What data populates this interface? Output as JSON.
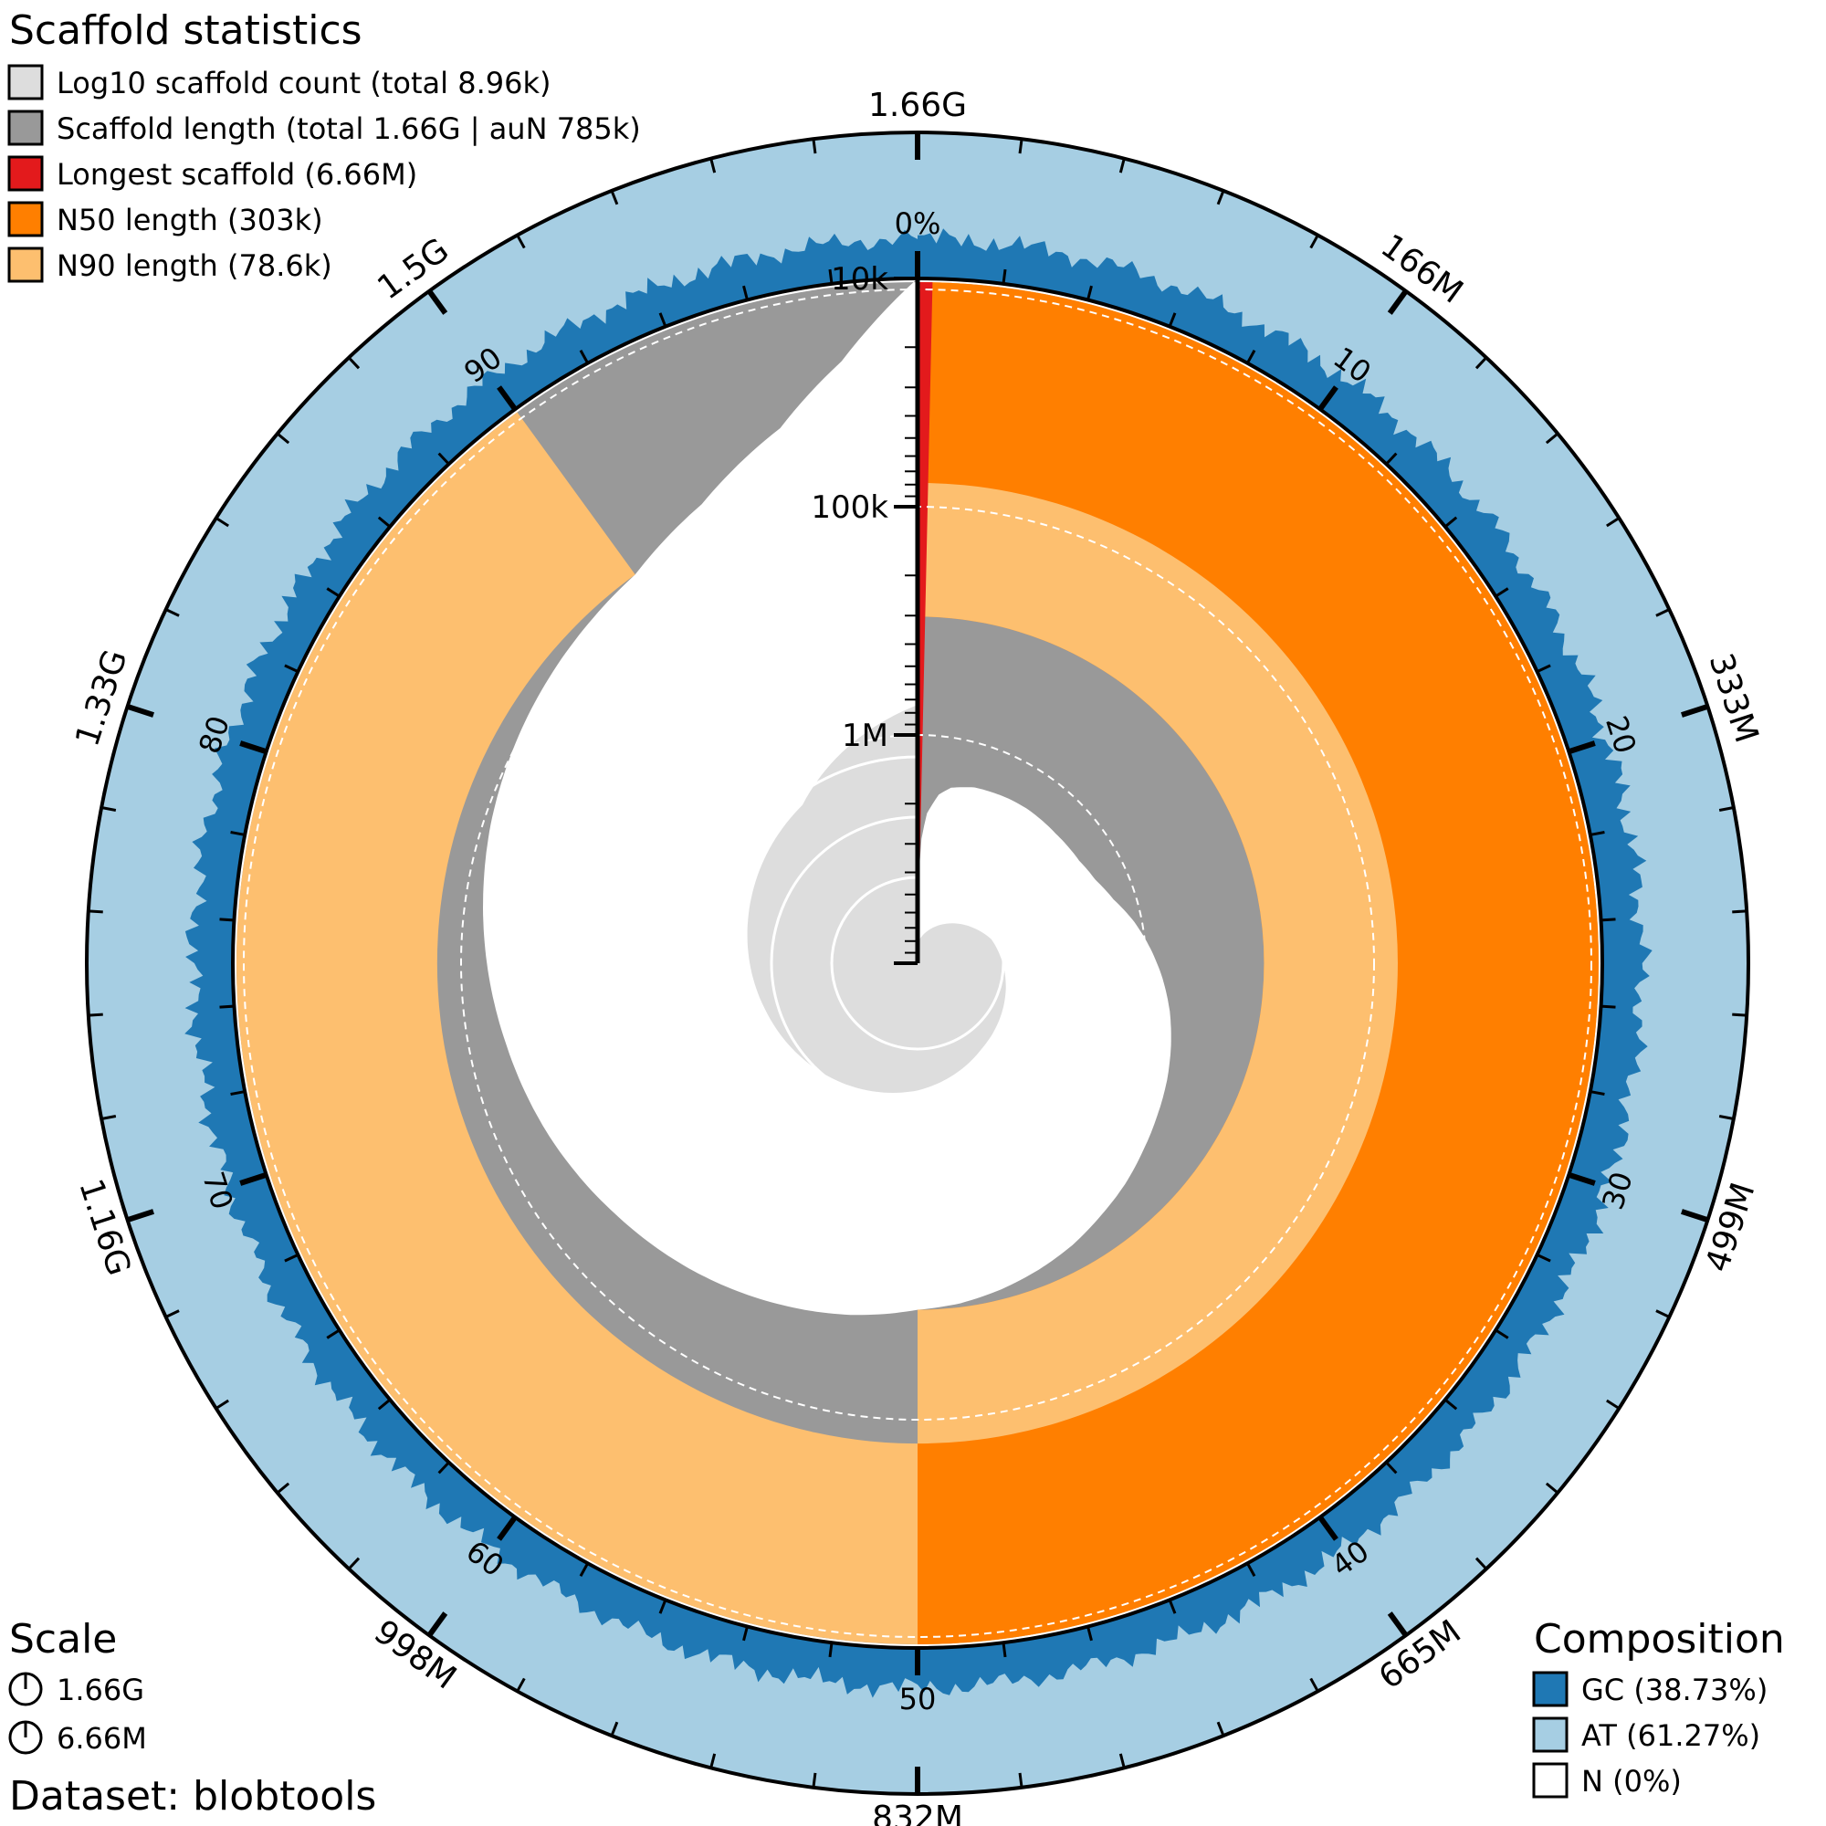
{
  "title": "Scaffold statistics",
  "legend": [
    {
      "label": "Log10 scaffold count (total 8.96k)",
      "color": "#dddddd"
    },
    {
      "label": "Scaffold length (total 1.66G | auN 785k)",
      "color": "#999999"
    },
    {
      "label": "Longest scaffold (6.66M)",
      "color": "#e31a1c"
    },
    {
      "label": "N50 length (303k)",
      "color": "#ff7f00"
    },
    {
      "label": "N90 length (78.6k)",
      "color": "#fdbf6f"
    }
  ],
  "scale": {
    "title": "Scale",
    "items": [
      "1.66G",
      "6.66M"
    ]
  },
  "dataset_label": "Dataset: blobtools",
  "composition": {
    "title": "Composition",
    "items": [
      {
        "label": "GC (38.73%)",
        "color": "#1f78b4"
      },
      {
        "label": "AT (61.27%)",
        "color": "#a6cee3"
      },
      {
        "label": "N (0%)",
        "color": "#ffffff"
      }
    ]
  },
  "chart_data": {
    "type": "snail",
    "total_length": "1.66G",
    "scaffold_count": "8.96k",
    "longest_scaffold": "6.66M",
    "n50": "303k",
    "n90": "78.6k",
    "aun": "785k",
    "gc_percent": 38.73,
    "at_percent": 61.27,
    "n_percent": 0,
    "outer_tick_labels": [
      "1.66G",
      "166M",
      "333M",
      "499M",
      "665M",
      "832M",
      "998M",
      "1.16G",
      "1.33G",
      "1.5G"
    ],
    "percent_tick_labels": [
      "0%",
      "10",
      "20",
      "30",
      "40",
      "50",
      "60",
      "70",
      "80",
      "90"
    ],
    "radial_axis_labels": [
      "10k",
      "100k",
      "1M"
    ],
    "n50_percent": 50,
    "n90_percent": 90,
    "length_profile": [
      [
        0,
        6660000
      ],
      [
        0.4,
        3000000
      ],
      [
        1,
        2200000
      ],
      [
        2,
        1800000
      ],
      [
        3,
        1650000
      ],
      [
        5,
        1550000
      ],
      [
        8,
        1500000
      ],
      [
        10,
        1480000
      ],
      [
        13,
        1480000
      ],
      [
        16,
        1450000
      ],
      [
        18,
        1380000
      ],
      [
        20,
        1250000
      ],
      [
        22,
        1080000
      ],
      [
        24,
        950000
      ],
      [
        26,
        840000
      ],
      [
        28,
        750000
      ],
      [
        30,
        680000
      ],
      [
        32,
        620000
      ],
      [
        34,
        570000
      ],
      [
        36,
        520000
      ],
      [
        38,
        470000
      ],
      [
        40,
        430000
      ],
      [
        42,
        390000
      ],
      [
        44,
        360000
      ],
      [
        46,
        335000
      ],
      [
        48,
        315000
      ],
      [
        50,
        303000
      ],
      [
        53,
        270000
      ],
      [
        56,
        245000
      ],
      [
        60,
        215000
      ],
      [
        64,
        190000
      ],
      [
        68,
        165000
      ],
      [
        72,
        145000
      ],
      [
        76,
        125000
      ],
      [
        80,
        108000
      ],
      [
        84,
        95000
      ],
      [
        88,
        84000
      ],
      [
        90,
        78600
      ],
      [
        93,
        60000
      ],
      [
        96,
        38000
      ],
      [
        98,
        22000
      ],
      [
        100,
        10000
      ]
    ],
    "count_profile": [
      [
        0,
        1
      ],
      [
        10,
        3
      ],
      [
        20,
        9
      ],
      [
        30,
        16
      ],
      [
        40,
        28
      ],
      [
        50,
        60
      ],
      [
        60,
        110
      ],
      [
        70,
        200
      ],
      [
        80,
        400
      ],
      [
        90,
        820
      ],
      [
        100,
        8960
      ]
    ]
  }
}
